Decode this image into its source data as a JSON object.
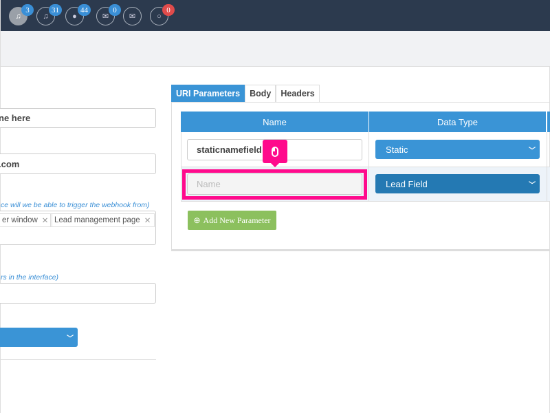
{
  "topbar": {
    "icons": [
      {
        "icon": "audio-file-icon",
        "badge": "3"
      },
      {
        "icon": "audio-file-icon",
        "badge": "31"
      },
      {
        "icon": "chat-icon",
        "badge": "44"
      },
      {
        "icon": "envelope-icon",
        "badge": "0"
      },
      {
        "icon": "envelope-open-icon",
        "badge": ""
      },
      {
        "icon": "speech-bubble-icon",
        "badge": "0"
      }
    ]
  },
  "left": {
    "field1_value": "ne here",
    "field2_value": ".com",
    "hint1": "ce will we be able to trigger the webhook from)",
    "tags": [
      "er window",
      "Lead management page"
    ],
    "tag_remove": "✕",
    "hint2": "rs in the interface)"
  },
  "tabs": [
    "URI Parameters",
    "Body",
    "Headers"
  ],
  "table": {
    "headers": [
      "Name",
      "Data Type"
    ],
    "rows": [
      {
        "name": "staticnamefield",
        "type": "Static"
      },
      {
        "name_placeholder": "Name",
        "type": "Lead Field"
      }
    ]
  },
  "add_button": "Add New Parameter",
  "colors": {
    "accent": "#3a94d6",
    "highlight": "#ff0a8c",
    "button": "#8cc05e",
    "topbar": "#2c3a4e"
  }
}
